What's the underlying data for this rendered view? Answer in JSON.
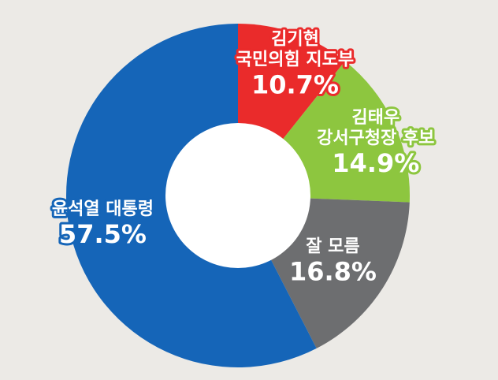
{
  "chart_data": {
    "type": "pie",
    "style": "donut",
    "slices": [
      {
        "label_lines": [
          "김기현",
          "국민의힘 지도부"
        ],
        "value": 10.7,
        "value_text": "10.7%",
        "color": "#ea2b2b"
      },
      {
        "label_lines": [
          "김태우",
          "강서구청장 후보"
        ],
        "value": 14.9,
        "value_text": "14.9%",
        "color": "#8dc63f"
      },
      {
        "label_lines": [
          "잘 모름"
        ],
        "value": 16.8,
        "value_text": "16.8%",
        "color": "#6d6e70"
      },
      {
        "label_lines": [
          "윤석열 대통령"
        ],
        "value": 57.5,
        "value_text": "57.5%",
        "color": "#1565b8"
      }
    ],
    "hole_color": "#ffffff",
    "background": "#eceae6"
  }
}
